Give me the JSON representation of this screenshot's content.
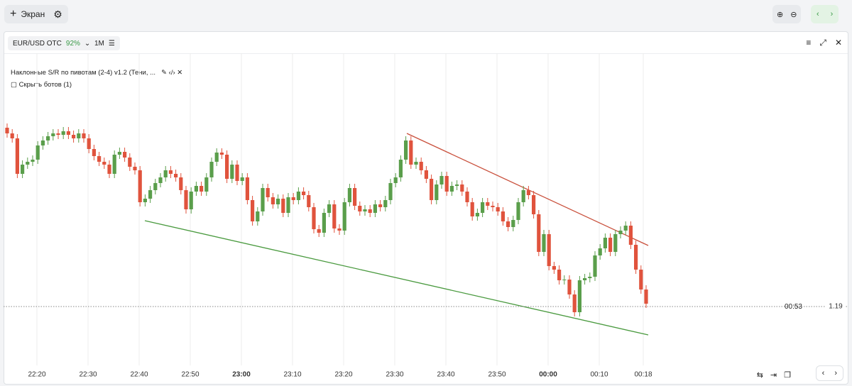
{
  "toolbar": {
    "screen_button": "Экран"
  },
  "panel": {
    "symbol": "EUR/USD OTC",
    "payout": "92%",
    "timeframe": "1M",
    "indicator": "Наклонные S/R по пивотам (2-4) v1.2 (Тени, ...",
    "hide_bots": "Скрыть ботов (1)",
    "timer": "00:53"
  },
  "chart_data": {
    "type": "candlestick",
    "up_color": "#5a9e4b",
    "down_color": "#e0533d",
    "ylim": [
      1.18917,
      1.19357
    ],
    "current_price": 1.19,
    "xticks": [
      "22:20",
      "22:30",
      "22:40",
      "22:50",
      "23:00",
      "23:10",
      "23:20",
      "23:30",
      "23:40",
      "23:50",
      "00:00",
      "00:10",
      "00:18"
    ],
    "candles": [
      [
        1.19252,
        1.19258,
        1.19238,
        1.19244
      ],
      [
        1.19244,
        1.1925,
        1.19231,
        1.19237
      ],
      [
        1.19237,
        1.19243,
        1.19181,
        1.19187
      ],
      [
        1.19187,
        1.19206,
        1.19181,
        1.192
      ],
      [
        1.192,
        1.1921,
        1.19194,
        1.19204
      ],
      [
        1.19204,
        1.19213,
        1.19198,
        1.19207
      ],
      [
        1.19207,
        1.19233,
        1.19201,
        1.19227
      ],
      [
        1.19227,
        1.1924,
        1.19221,
        1.19234
      ],
      [
        1.19234,
        1.19246,
        1.19228,
        1.1924
      ],
      [
        1.1924,
        1.1925,
        1.19234,
        1.19244
      ],
      [
        1.19244,
        1.1925,
        1.19236,
        1.19242
      ],
      [
        1.19242,
        1.19253,
        1.19236,
        1.19247
      ],
      [
        1.19247,
        1.19253,
        1.19236,
        1.19242
      ],
      [
        1.19242,
        1.19248,
        1.19231,
        1.19237
      ],
      [
        1.19237,
        1.1925,
        1.19231,
        1.19244
      ],
      [
        1.19244,
        1.1925,
        1.19231,
        1.19237
      ],
      [
        1.19237,
        1.19243,
        1.19216,
        1.19222
      ],
      [
        1.19222,
        1.19228,
        1.19206,
        1.19212
      ],
      [
        1.19212,
        1.19218,
        1.19198,
        1.19204
      ],
      [
        1.19204,
        1.1921,
        1.19194,
        1.192
      ],
      [
        1.192,
        1.19206,
        1.19181,
        1.19187
      ],
      [
        1.19187,
        1.1922,
        1.19181,
        1.19214
      ],
      [
        1.19214,
        1.19224,
        1.19208,
        1.19218
      ],
      [
        1.19218,
        1.19224,
        1.19204,
        1.1921
      ],
      [
        1.1921,
        1.19216,
        1.19191,
        1.19197
      ],
      [
        1.19197,
        1.19203,
        1.19186,
        1.19192
      ],
      [
        1.19192,
        1.19198,
        1.19141,
        1.19147
      ],
      [
        1.19147,
        1.19158,
        1.19141,
        1.19152
      ],
      [
        1.19152,
        1.1917,
        1.19146,
        1.19164
      ],
      [
        1.19164,
        1.1918,
        1.19158,
        1.19174
      ],
      [
        1.19174,
        1.19188,
        1.19168,
        1.19182
      ],
      [
        1.19182,
        1.19198,
        1.19176,
        1.19192
      ],
      [
        1.19192,
        1.19198,
        1.19181,
        1.19187
      ],
      [
        1.19187,
        1.19193,
        1.19176,
        1.19182
      ],
      [
        1.19182,
        1.19188,
        1.19158,
        1.19164
      ],
      [
        1.19164,
        1.1917,
        1.19131,
        1.19137
      ],
      [
        1.19137,
        1.19168,
        1.19131,
        1.19162
      ],
      [
        1.19162,
        1.19176,
        1.19156,
        1.1917
      ],
      [
        1.1917,
        1.19176,
        1.19156,
        1.19162
      ],
      [
        1.19162,
        1.19188,
        1.19156,
        1.19182
      ],
      [
        1.19182,
        1.1921,
        1.19176,
        1.19204
      ],
      [
        1.19204,
        1.19223,
        1.19198,
        1.19217
      ],
      [
        1.19217,
        1.19223,
        1.19208,
        1.19214
      ],
      [
        1.19214,
        1.1922,
        1.19174,
        1.1918
      ],
      [
        1.1918,
        1.19206,
        1.19174,
        1.192
      ],
      [
        1.192,
        1.19206,
        1.19171,
        1.19177
      ],
      [
        1.19177,
        1.19188,
        1.19171,
        1.19182
      ],
      [
        1.19182,
        1.19188,
        1.19144,
        1.1915
      ],
      [
        1.1915,
        1.19156,
        1.19114,
        1.1912
      ],
      [
        1.1912,
        1.1914,
        1.19114,
        1.19134
      ],
      [
        1.19134,
        1.19173,
        1.19128,
        1.19167
      ],
      [
        1.19167,
        1.19173,
        1.19148,
        1.19154
      ],
      [
        1.19154,
        1.1916,
        1.19138,
        1.19144
      ],
      [
        1.19144,
        1.19158,
        1.19138,
        1.19152
      ],
      [
        1.19152,
        1.19158,
        1.19126,
        1.19132
      ],
      [
        1.19132,
        1.1916,
        1.19126,
        1.19154
      ],
      [
        1.19154,
        1.1916,
        1.19144,
        1.1915
      ],
      [
        1.1915,
        1.19168,
        1.19144,
        1.19162
      ],
      [
        1.19162,
        1.19168,
        1.19151,
        1.19157
      ],
      [
        1.19157,
        1.19163,
        1.19134,
        1.1914
      ],
      [
        1.1914,
        1.19146,
        1.19103,
        1.19109
      ],
      [
        1.19109,
        1.19115,
        1.19098,
        1.19104
      ],
      [
        1.19104,
        1.19138,
        1.19098,
        1.19132
      ],
      [
        1.19132,
        1.1915,
        1.19126,
        1.19144
      ],
      [
        1.19144,
        1.1915,
        1.19104,
        1.1911
      ],
      [
        1.1911,
        1.19116,
        1.19101,
        1.19107
      ],
      [
        1.19107,
        1.19153,
        1.19101,
        1.19147
      ],
      [
        1.19147,
        1.19173,
        1.19141,
        1.19167
      ],
      [
        1.19167,
        1.19173,
        1.19136,
        1.19142
      ],
      [
        1.19142,
        1.19148,
        1.19128,
        1.19134
      ],
      [
        1.19134,
        1.19143,
        1.19128,
        1.19137
      ],
      [
        1.19137,
        1.19143,
        1.19126,
        1.19132
      ],
      [
        1.19132,
        1.1915,
        1.19126,
        1.19144
      ],
      [
        1.19144,
        1.1915,
        1.19134,
        1.1914
      ],
      [
        1.1914,
        1.19156,
        1.19134,
        1.1915
      ],
      [
        1.1915,
        1.1918,
        1.19144,
        1.19174
      ],
      [
        1.19174,
        1.19188,
        1.19168,
        1.19182
      ],
      [
        1.19182,
        1.19213,
        1.19176,
        1.19207
      ],
      [
        1.19207,
        1.1924,
        1.19201,
        1.19234
      ],
      [
        1.19234,
        1.1924,
        1.19194,
        1.192
      ],
      [
        1.192,
        1.1921,
        1.19194,
        1.19204
      ],
      [
        1.19204,
        1.1921,
        1.19186,
        1.19192
      ],
      [
        1.19192,
        1.19198,
        1.19174,
        1.1918
      ],
      [
        1.1918,
        1.19186,
        1.19144,
        1.1915
      ],
      [
        1.1915,
        1.19178,
        1.19144,
        1.19172
      ],
      [
        1.19172,
        1.1919,
        1.19166,
        1.19184
      ],
      [
        1.19184,
        1.1919,
        1.19156,
        1.19162
      ],
      [
        1.19162,
        1.19176,
        1.19156,
        1.1917
      ],
      [
        1.1917,
        1.19178,
        1.19164,
        1.19172
      ],
      [
        1.19172,
        1.19178,
        1.19156,
        1.19162
      ],
      [
        1.19162,
        1.19168,
        1.19141,
        1.19147
      ],
      [
        1.19147,
        1.19153,
        1.19121,
        1.19127
      ],
      [
        1.19127,
        1.19138,
        1.19121,
        1.19132
      ],
      [
        1.19132,
        1.19153,
        1.19126,
        1.19147
      ],
      [
        1.19147,
        1.19153,
        1.19136,
        1.19142
      ],
      [
        1.19142,
        1.19148,
        1.19134,
        1.1914
      ],
      [
        1.1914,
        1.19146,
        1.19128,
        1.19134
      ],
      [
        1.19134,
        1.1914,
        1.19114,
        1.1912
      ],
      [
        1.1912,
        1.19126,
        1.19106,
        1.19112
      ],
      [
        1.19112,
        1.19128,
        1.19106,
        1.19122
      ],
      [
        1.19122,
        1.19153,
        1.19116,
        1.19147
      ],
      [
        1.19147,
        1.1917,
        1.19141,
        1.19164
      ],
      [
        1.19164,
        1.1917,
        1.19151,
        1.19157
      ],
      [
        1.19157,
        1.19163,
        1.19124,
        1.1913
      ],
      [
        1.1913,
        1.19136,
        1.19071,
        1.19077
      ],
      [
        1.19077,
        1.19108,
        1.19071,
        1.19102
      ],
      [
        1.19102,
        1.19108,
        1.19051,
        1.19057
      ],
      [
        1.19057,
        1.19063,
        1.19046,
        1.19052
      ],
      [
        1.19052,
        1.19058,
        1.19031,
        1.19037
      ],
      [
        1.19037,
        1.19044,
        1.19031,
        1.19038
      ],
      [
        1.19038,
        1.19044,
        1.19011,
        1.19017
      ],
      [
        1.19017,
        1.19023,
        1.18986,
        1.18992
      ],
      [
        1.18992,
        1.19043,
        1.18986,
        1.19037
      ],
      [
        1.19037,
        1.19046,
        1.19031,
        1.1904
      ],
      [
        1.1904,
        1.19048,
        1.19034,
        1.19042
      ],
      [
        1.19042,
        1.19078,
        1.19036,
        1.19072
      ],
      [
        1.19072,
        1.19088,
        1.19066,
        1.19082
      ],
      [
        1.19082,
        1.19103,
        1.19076,
        1.19097
      ],
      [
        1.19097,
        1.19103,
        1.19071,
        1.19077
      ],
      [
        1.19077,
        1.19108,
        1.19071,
        1.19102
      ],
      [
        1.19102,
        1.19113,
        1.19096,
        1.19107
      ],
      [
        1.19107,
        1.1912,
        1.19101,
        1.19114
      ],
      [
        1.19114,
        1.1912,
        1.19081,
        1.19087
      ],
      [
        1.19087,
        1.19093,
        1.19046,
        1.19052
      ],
      [
        1.19052,
        1.19058,
        1.19018,
        1.19024
      ],
      [
        1.19024,
        1.1903,
        1.18998,
        1.19004
      ]
    ]
  }
}
